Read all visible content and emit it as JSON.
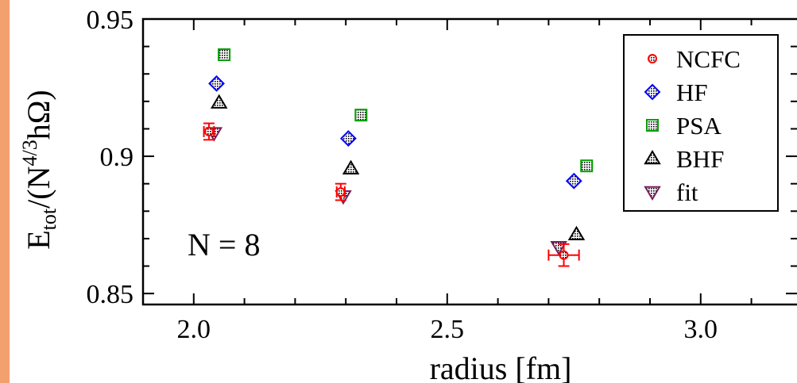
{
  "chart_data": {
    "type": "scatter",
    "xlabel": "radius [fm]",
    "ylabel_parts": {
      "base": "E",
      "sub": "tot",
      "mid": "/(N",
      "sup": "4/3",
      "end": "hΩ)"
    },
    "annotation": "N = 8",
    "xlim": [
      1.9,
      3.19
    ],
    "ylim": [
      0.846,
      0.95
    ],
    "x_ticks": [
      {
        "value": 2.0,
        "label": "2.0"
      },
      {
        "value": 2.5,
        "label": "2.5"
      },
      {
        "value": 3.0,
        "label": "3.0"
      }
    ],
    "y_ticks": [
      {
        "value": 0.85,
        "label": "0.85"
      },
      {
        "value": 0.9,
        "label": "0.9"
      },
      {
        "value": 0.95,
        "label": "0.95"
      }
    ],
    "legend_position": "top-right",
    "series": [
      {
        "name": "NCFC",
        "marker": "circle",
        "color": "#ff0000",
        "points": [
          {
            "x": 2.03,
            "y": 0.909,
            "xerr": 0.01,
            "yerr": 0.003
          },
          {
            "x": 2.29,
            "y": 0.887,
            "xerr": 0.008,
            "yerr": 0.003
          },
          {
            "x": 2.73,
            "y": 0.864,
            "xerr": 0.03,
            "yerr": 0.004
          }
        ]
      },
      {
        "name": "HF",
        "marker": "diamond",
        "color": "#0000ff",
        "points": [
          {
            "x": 2.045,
            "y": 0.9265
          },
          {
            "x": 2.305,
            "y": 0.9065
          },
          {
            "x": 2.75,
            "y": 0.891
          }
        ]
      },
      {
        "name": "PSA",
        "marker": "square",
        "color": "#00a000",
        "points": [
          {
            "x": 2.06,
            "y": 0.937
          },
          {
            "x": 2.33,
            "y": 0.915
          },
          {
            "x": 2.775,
            "y": 0.8965
          }
        ]
      },
      {
        "name": "BHF",
        "marker": "triangle-up",
        "color": "#000000",
        "points": [
          {
            "x": 2.05,
            "y": 0.9195
          },
          {
            "x": 2.31,
            "y": 0.8955
          },
          {
            "x": 2.755,
            "y": 0.8715
          }
        ]
      },
      {
        "name": "fit",
        "marker": "triangle-down",
        "color": "#7a1f5a",
        "points": [
          {
            "x": 2.04,
            "y": 0.9085
          },
          {
            "x": 2.295,
            "y": 0.8855
          },
          {
            "x": 2.72,
            "y": 0.867
          }
        ]
      }
    ]
  }
}
